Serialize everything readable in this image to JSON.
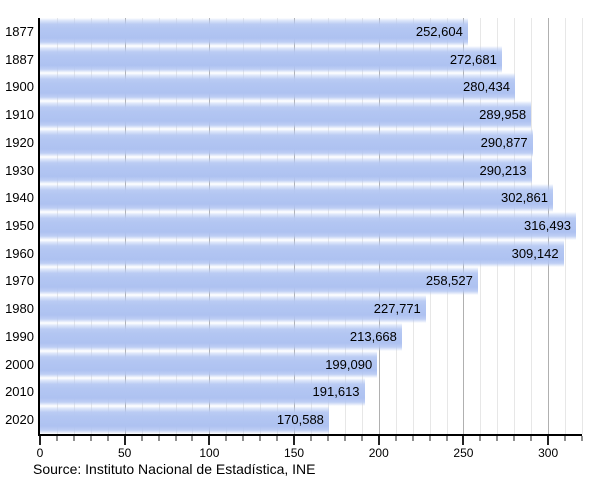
{
  "chart_data": {
    "type": "bar",
    "orientation": "horizontal",
    "title": "",
    "categories": [
      "1877",
      "1887",
      "1900",
      "1910",
      "1920",
      "1930",
      "1940",
      "1950",
      "1960",
      "1970",
      "1980",
      "1990",
      "2000",
      "2010",
      "2020"
    ],
    "values": [
      252604,
      272681,
      280434,
      289958,
      290877,
      290213,
      302861,
      316493,
      309142,
      258527,
      227771,
      213668,
      199090,
      191613,
      170588
    ],
    "value_labels": [
      "252,604",
      "272,681",
      "280,434",
      "289,958",
      "290,877",
      "290,213",
      "302,861",
      "316,493",
      "309,142",
      "258,527",
      "227,771",
      "213,668",
      "199,090",
      "191,613",
      "170,588"
    ],
    "x_axis": {
      "tick_values": [
        0,
        50000,
        100000,
        150000,
        200000,
        250000,
        300000
      ],
      "tick_labels": [
        "0",
        "50",
        "100",
        "150",
        "200",
        "250",
        "300"
      ],
      "minor_step": 10000,
      "major_step": 50000,
      "max": 320000,
      "grid": "on"
    },
    "source": "Source: Instituto Nacional de Estadística, INE",
    "colors": {
      "bar": "#b3c6f2",
      "grid_minor": "#e7e7e7",
      "grid_major": "#b0b0b0",
      "axis": "#000000",
      "text": "#000000"
    }
  }
}
